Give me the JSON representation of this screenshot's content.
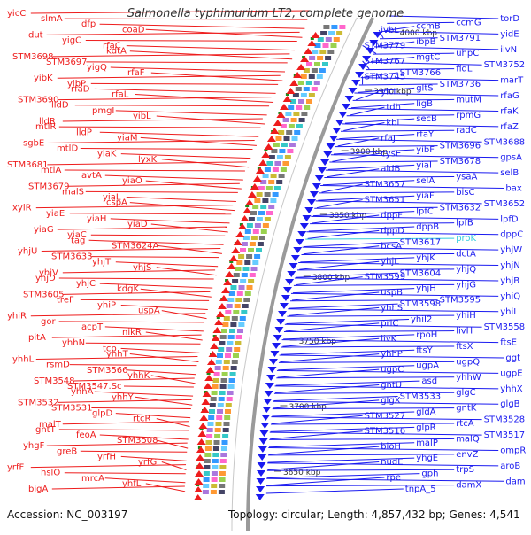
{
  "title": "Salmonella typhimurium LT2, complete genome",
  "footer": {
    "accession": "Accession: NC_003197",
    "summary": "Topology: circular; Length: 4,857,432 bp; Genes: 4,541"
  },
  "kbp_labels": [
    "4000 kbp",
    "3950 kbp",
    "3900 kbp",
    "3850 kbp",
    "3800 kbp",
    "3750 kbp",
    "3700 kbp",
    "3650 kbp"
  ],
  "left_genes": [
    "yicC",
    "slmA",
    "dfp",
    "coaD",
    "dut",
    "yigC",
    "rfaC",
    "kdtA",
    "STM3698",
    "STM3697",
    "yigQ",
    "rfaF",
    "yibK",
    "yibP",
    "rfaD",
    "rfaL",
    "STM3690",
    "lldD",
    "pmgI",
    "yibL",
    "lldR",
    "mtlR",
    "lldP",
    "yiaM",
    "sgbE",
    "mtlD",
    "yiaK",
    "lyxK",
    "STM3681",
    "mtlA",
    "avtA",
    "yiaO",
    "STM3679",
    "malS",
    "yiaL",
    "cspA",
    "xylR",
    "yiaE",
    "yiaH",
    "yiaD",
    "yiaG",
    "yiaC",
    "tag",
    "STM3624A",
    "yhjU",
    "STM3633",
    "yhjT",
    "yhjS",
    "yhjV",
    "yhjD",
    "yhjC",
    "kdgK",
    "STM3605",
    "treF",
    "yhiP",
    "uspA",
    "yhiR",
    "gor",
    "acpT",
    "nikR",
    "pitA",
    "yhhN",
    "tcp",
    "yhhT",
    "yhhL",
    "rsmD",
    "STM3566",
    "yhhK",
    "STM3548",
    "STM3547.Sc",
    "yhhA",
    "yhhY",
    "STM3532",
    "STM3531",
    "glpD",
    "rtcR",
    "malT",
    "gntT",
    "feoA",
    "STM3508",
    "yhgF",
    "greB",
    "yrfH",
    "yrfG",
    "yrfF",
    "hslO",
    "mrcA",
    "yhfL",
    "bigA"
  ],
  "right_genes": [
    "torD",
    "ccmG",
    "ccmB",
    "ivbL",
    "yidE",
    "STM3791",
    "ibpB",
    "STM3779",
    "ilvN",
    "uhpC",
    "mgtC",
    "STM3767",
    "STM3752",
    "fidL",
    "STM3766",
    "STM3745",
    "marT",
    "STM3736",
    "gltS",
    "yicI",
    "rfaG",
    "mutM",
    "ligB",
    "tdh",
    "rfaK",
    "rpmG",
    "secB",
    "kbl",
    "rfaZ",
    "radC",
    "rfaY",
    "rfaJ",
    "STM3688",
    "STM3696",
    "yibF",
    "cysE",
    "gpsA",
    "STM3678",
    "yiaI",
    "aldB",
    "selB",
    "ysaA",
    "selA",
    "STM3657",
    "bax",
    "bisC",
    "yiaF",
    "STM3651",
    "STM3652",
    "STM3632",
    "lpfC",
    "dppF",
    "lpfD",
    "lpfB",
    "dppB",
    "dppD",
    "dppC",
    "proK",
    "STM3617",
    "bcsA",
    "yhjW",
    "dctA",
    "yhjK",
    "yhjL",
    "yhjN",
    "yhjQ",
    "STM3604",
    "STM3599",
    "yhjB",
    "yhjG",
    "yhjH",
    "uspB",
    "yhiQ",
    "STM3595",
    "STM3598",
    "yhhS",
    "yhiI",
    "yhiH",
    "yhiI2",
    "prlC",
    "STM3558",
    "livH",
    "rpoH",
    "livK",
    "ftsE",
    "ftsX",
    "ftsY",
    "yhhP",
    "ggt",
    "ugpQ",
    "ugpA",
    "ugpC",
    "ugpE",
    "yhhW",
    "asd",
    "gntU",
    "yhhX",
    "glgC",
    "STM3533",
    "glgX",
    "glgB",
    "gntK",
    "gldA",
    "STM3527",
    "STM3528",
    "rtcA",
    "glpR",
    "STM3516",
    "STM3517",
    "malQ",
    "malP",
    "bioH",
    "ompR",
    "envZ",
    "yhgE",
    "nudE",
    "aroB",
    "trpS",
    "gph",
    "rpe",
    "dam",
    "damX",
    "tnpA_5"
  ],
  "colors": {
    "left": "#ee1c1c",
    "right": "#1a1af0",
    "backbone": "#9a9a9a",
    "gc_marker": "#1a8c1a"
  }
}
